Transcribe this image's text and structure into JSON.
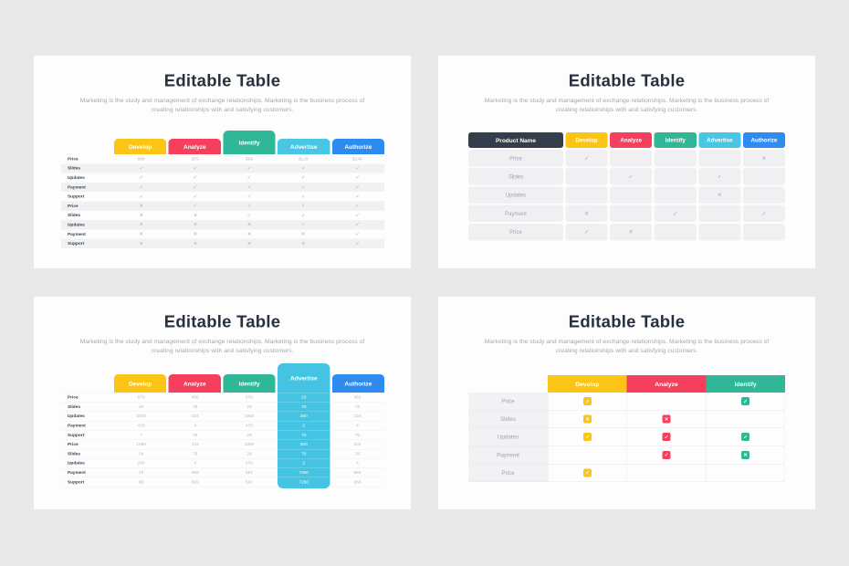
{
  "page": {
    "background": "#E9E9EA",
    "card_background": "#FDFDFE"
  },
  "shared": {
    "title": "Editable Table",
    "subtitle": "Marketing is the study and management of exchange relationships. Marketing is the business process of creating relationships with and satisfying customers."
  },
  "icons": {
    "check": "✓",
    "cross": "✕"
  },
  "colors": {
    "develop": "#FCC515",
    "analyze": "#F63E5D",
    "identify": "#30B797",
    "advertise": "#4AC6E5",
    "authorize": "#2E8BEF",
    "product_name_header": "#333D4C",
    "title_text": "#27303E",
    "muted_text": "#A7A8AA"
  },
  "slides": [
    {
      "name": "pricing-tab-table",
      "type": "striped",
      "raised_column": 2,
      "columns": [
        {
          "label": "Develop",
          "color": "#FCC515"
        },
        {
          "label": "Analyze",
          "color": "#F63E5D"
        },
        {
          "label": "Identify",
          "color": "#30B797"
        },
        {
          "label": "Advertise",
          "color": "#4AC6E5"
        },
        {
          "label": "Authorize",
          "color": "#2E8BEF"
        }
      ],
      "rows": [
        {
          "label": "Price",
          "values": [
            "$49",
            "$79",
            "$99",
            "$129",
            "$149"
          ]
        },
        {
          "label": "Slides",
          "values": [
            "check",
            "check",
            "check",
            "check",
            "check"
          ]
        },
        {
          "label": "Updates",
          "values": [
            "check",
            "check",
            "check",
            "check",
            "check"
          ]
        },
        {
          "label": "Payment",
          "values": [
            "check",
            "check",
            "check",
            "check",
            "check"
          ]
        },
        {
          "label": "Support",
          "values": [
            "check",
            "check",
            "check",
            "check",
            "check"
          ]
        },
        {
          "label": "Price",
          "values": [
            "cross",
            "check",
            "check",
            "check",
            "check"
          ]
        },
        {
          "label": "Slides",
          "values": [
            "cross",
            "cross",
            "check",
            "check",
            "check"
          ]
        },
        {
          "label": "Updates",
          "values": [
            "cross",
            "cross",
            "cross",
            "check",
            "check"
          ]
        },
        {
          "label": "Payment",
          "values": [
            "cross",
            "cross",
            "cross",
            "cross",
            "check"
          ]
        },
        {
          "label": "Support",
          "values": [
            "cross",
            "cross",
            "cross",
            "cross",
            "check"
          ]
        }
      ]
    },
    {
      "name": "product-name-matrix",
      "type": "cells",
      "corner_label": "Product Name",
      "corner_color": "#333D4C",
      "columns": [
        {
          "label": "Develop",
          "color": "#FCC515"
        },
        {
          "label": "Analyze",
          "color": "#F63E5D"
        },
        {
          "label": "Identify",
          "color": "#30B797"
        },
        {
          "label": "Advertise",
          "color": "#4AC6E5"
        },
        {
          "label": "Authorize",
          "color": "#2E8BEF"
        }
      ],
      "rows": [
        {
          "label": "Price",
          "values": [
            "check",
            "",
            "",
            "",
            "cross"
          ]
        },
        {
          "label": "Slides",
          "values": [
            "",
            "check",
            "",
            "check",
            ""
          ]
        },
        {
          "label": "Updates",
          "values": [
            "",
            "",
            "",
            "cross",
            ""
          ]
        },
        {
          "label": "Payment",
          "values": [
            "cross",
            "",
            "check",
            "",
            "check"
          ]
        },
        {
          "label": "Price",
          "values": [
            "check",
            "cross",
            "",
            "",
            ""
          ]
        }
      ]
    },
    {
      "name": "highlight-column-table",
      "type": "highlight",
      "highlight_column": 3,
      "highlight_color": "#44C4E2",
      "columns": [
        {
          "label": "Develop",
          "color": "#FCC515"
        },
        {
          "label": "Analyze",
          "color": "#F63E5D"
        },
        {
          "label": "Identify",
          "color": "#30B797"
        },
        {
          "label": "Advertise",
          "color": "#4AC6E5"
        },
        {
          "label": "Authorize",
          "color": "#2E8BEF"
        }
      ],
      "rows": [
        {
          "label": "Price",
          "values": [
            "570",
            "456",
            "570",
            "23",
            "456"
          ]
        },
        {
          "label": "Slides",
          "values": [
            "40",
            "78",
            "28",
            "70",
            "78"
          ]
        },
        {
          "label": "Updates",
          "values": [
            "3400",
            "234",
            "1950",
            "250",
            "234"
          ]
        },
        {
          "label": "Payment",
          "values": [
            "470",
            "4",
            "470",
            "2",
            "4"
          ]
        },
        {
          "label": "Support",
          "values": [
            "7",
            "78",
            "28",
            "70",
            "78"
          ]
        },
        {
          "label": "Price",
          "values": [
            "1950",
            "234",
            "1950",
            "250",
            "234"
          ]
        },
        {
          "label": "Slides",
          "values": [
            "28",
            "78",
            "28",
            "70",
            "78"
          ]
        },
        {
          "label": "Updates",
          "values": [
            "200",
            "4",
            "470",
            "2",
            "4"
          ]
        },
        {
          "label": "Payment",
          "values": [
            "19",
            "869",
            "591",
            "7250",
            "869"
          ]
        },
        {
          "label": "Support",
          "values": [
            "80",
            "869",
            "591",
            "7250",
            "869"
          ]
        }
      ]
    },
    {
      "name": "badge-grid",
      "type": "badges",
      "columns": [
        {
          "label": "Develop",
          "color": "#FCC515"
        },
        {
          "label": "Analyze",
          "color": "#F63E5D"
        },
        {
          "label": "Identify",
          "color": "#30B797"
        }
      ],
      "rows": [
        {
          "label": "Price",
          "values": [
            "check",
            "",
            "check"
          ]
        },
        {
          "label": "Slides",
          "values": [
            "cross",
            "cross",
            ""
          ]
        },
        {
          "label": "Updates",
          "values": [
            "check",
            "check",
            "check"
          ]
        },
        {
          "label": "Payment",
          "values": [
            "",
            "check",
            "cross"
          ]
        },
        {
          "label": "Price",
          "values": [
            "check",
            "",
            ""
          ]
        }
      ]
    }
  ]
}
